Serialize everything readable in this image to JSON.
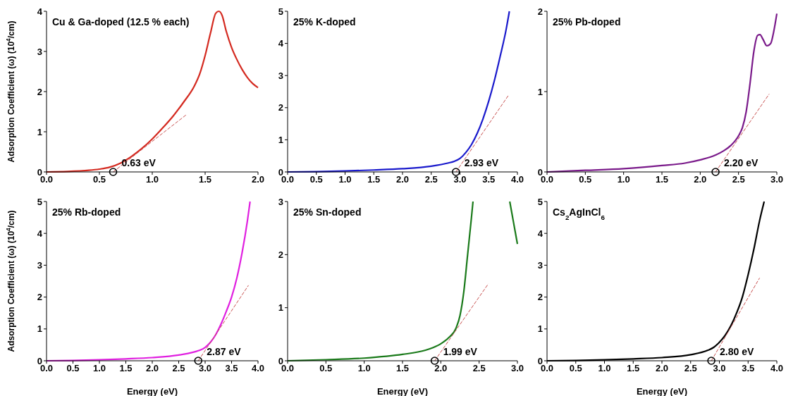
{
  "chart_data": [
    {
      "type": "line",
      "title": "Cu & Ga-doped (12.5 % each)",
      "ylabel": "Adsorption Coefficient (ω) (10$^{4}$/cm)",
      "xlim": [
        0,
        2
      ],
      "ylim": [
        0,
        4
      ],
      "xticks": [
        {
          "value": 0,
          "label": "0.0"
        },
        {
          "value": 0.5,
          "label": "0.5"
        },
        {
          "value": 1,
          "label": "1.0"
        },
        {
          "value": 1.5,
          "label": "1.5"
        },
        {
          "value": 2,
          "label": "2.0"
        }
      ],
      "yticks": [
        0,
        1,
        2,
        3,
        4
      ],
      "annotations": [
        {
          "text": "0.63 eV",
          "x": 0.63,
          "y": 0
        }
      ],
      "series": [
        {
          "color": "#d42a20",
          "x": [
            0,
            0.2,
            0.4,
            0.5,
            0.6,
            0.7,
            0.8,
            0.9,
            1.0,
            1.1,
            1.2,
            1.3,
            1.4,
            1.45,
            1.5,
            1.55,
            1.6,
            1.63,
            1.66,
            1.7,
            1.75,
            1.8,
            1.85,
            1.9,
            1.95,
            2.0
          ],
          "values": [
            0,
            0.01,
            0.04,
            0.07,
            0.12,
            0.22,
            0.38,
            0.58,
            0.82,
            1.1,
            1.4,
            1.75,
            2.15,
            2.45,
            2.9,
            3.45,
            3.95,
            4.0,
            3.9,
            3.5,
            3.1,
            2.8,
            2.55,
            2.35,
            2.2,
            2.1
          ]
        },
        {
          "line_style": "dashed",
          "color": "#c8504f",
          "x": [
            0.63,
            1.32
          ],
          "values": [
            0,
            1.42
          ]
        },
        {
          "type": "scatter",
          "marker": "circle",
          "color": "#000000",
          "x": [
            0.63
          ],
          "values": [
            0
          ]
        }
      ]
    },
    {
      "type": "line",
      "title": "25% K-doped",
      "xlim": [
        0,
        4
      ],
      "ylim": [
        0,
        5
      ],
      "xticks": [
        {
          "value": 0,
          "label": "0.0"
        },
        {
          "value": 0.5,
          "label": "0.5"
        },
        {
          "value": 1,
          "label": "1.0"
        },
        {
          "value": 1.5,
          "label": "1.5"
        },
        {
          "value": 2,
          "label": "2.0"
        },
        {
          "value": 2.5,
          "label": "2.5"
        },
        {
          "value": 3,
          "label": "3.0"
        },
        {
          "value": 3.5,
          "label": "3.5"
        },
        {
          "value": 4,
          "label": "4.0"
        }
      ],
      "yticks": [
        0,
        1,
        2,
        3,
        4,
        5
      ],
      "annotations": [
        {
          "text": "2.93 eV",
          "x": 2.93,
          "y": 0
        }
      ],
      "series": [
        {
          "color": "#1a1acc",
          "x": [
            0,
            0.5,
            1.0,
            1.5,
            2.0,
            2.5,
            2.8,
            2.9,
            3.0,
            3.1,
            3.2,
            3.3,
            3.4,
            3.5,
            3.6,
            3.7,
            3.8,
            3.86
          ],
          "values": [
            0,
            0.01,
            0.03,
            0.06,
            0.1,
            0.18,
            0.28,
            0.33,
            0.42,
            0.6,
            0.85,
            1.2,
            1.65,
            2.2,
            2.85,
            3.6,
            4.4,
            5
          ]
        },
        {
          "line_style": "dashed",
          "color": "#c8504f",
          "x": [
            2.93,
            3.85
          ],
          "values": [
            0,
            2.4
          ]
        },
        {
          "type": "scatter",
          "marker": "circle",
          "color": "#000000",
          "x": [
            2.93
          ],
          "values": [
            0
          ]
        }
      ]
    },
    {
      "type": "line",
      "title": "25% Pb-doped",
      "xlim": [
        0,
        3
      ],
      "ylim": [
        0,
        2
      ],
      "xticks": [
        {
          "value": 0,
          "label": "0.0"
        },
        {
          "value": 0.5,
          "label": "0.5"
        },
        {
          "value": 1,
          "label": "1.0"
        },
        {
          "value": 1.5,
          "label": "1.5"
        },
        {
          "value": 2,
          "label": "2.0"
        },
        {
          "value": 2.5,
          "label": "2.5"
        },
        {
          "value": 3,
          "label": "3.0"
        }
      ],
      "yticks": [
        0,
        1,
        2
      ],
      "annotations": [
        {
          "text": "2.20 eV",
          "x": 2.2,
          "y": 0
        }
      ],
      "series": [
        {
          "color": "#7a1a8a",
          "x": [
            0,
            0.5,
            1.0,
            1.5,
            1.8,
            2.0,
            2.2,
            2.3,
            2.4,
            2.5,
            2.55,
            2.6,
            2.65,
            2.7,
            2.75,
            2.78,
            2.82,
            2.87,
            2.92,
            2.96,
            3.0
          ],
          "values": [
            0,
            0.02,
            0.04,
            0.08,
            0.11,
            0.15,
            0.21,
            0.26,
            0.33,
            0.45,
            0.55,
            0.75,
            1.1,
            1.5,
            1.7,
            1.71,
            1.65,
            1.57,
            1.6,
            1.75,
            1.97
          ]
        },
        {
          "line_style": "dashed",
          "color": "#c8504f",
          "x": [
            2.2,
            2.9
          ],
          "values": [
            0,
            0.97
          ]
        },
        {
          "type": "scatter",
          "marker": "circle",
          "color": "#000000",
          "x": [
            2.2
          ],
          "values": [
            0
          ]
        }
      ]
    },
    {
      "type": "line",
      "title": "25% Rb-doped",
      "xlabel": "Energy (eV)",
      "ylabel": "Adsorption Coefficient (ω) (10$^{4}$/cm)",
      "xlim": [
        0,
        4
      ],
      "ylim": [
        0,
        5
      ],
      "xticks": [
        {
          "value": 0,
          "label": "0.0"
        },
        {
          "value": 0.5,
          "label": "0.5"
        },
        {
          "value": 1,
          "label": "1.0"
        },
        {
          "value": 1.5,
          "label": "1.5"
        },
        {
          "value": 2,
          "label": "2.0"
        },
        {
          "value": 2.5,
          "label": "2.5"
        },
        {
          "value": 3,
          "label": "3.0"
        },
        {
          "value": 3.5,
          "label": "3.5"
        },
        {
          "value": 4,
          "label": "4.0"
        }
      ],
      "yticks": [
        0,
        1,
        2,
        3,
        4,
        5
      ],
      "annotations": [
        {
          "text": "2.87 eV",
          "x": 2.87,
          "y": 0
        }
      ],
      "series": [
        {
          "color": "#e020e0",
          "x": [
            0,
            0.5,
            1.0,
            1.5,
            2.0,
            2.5,
            2.8,
            2.9,
            3.0,
            3.1,
            3.2,
            3.3,
            3.4,
            3.5,
            3.6,
            3.7,
            3.8,
            3.85
          ],
          "values": [
            0,
            0.01,
            0.03,
            0.06,
            0.1,
            0.18,
            0.28,
            0.33,
            0.42,
            0.58,
            0.82,
            1.15,
            1.55,
            2.0,
            2.6,
            3.4,
            4.4,
            5
          ]
        },
        {
          "line_style": "dashed",
          "color": "#c8504f",
          "x": [
            2.87,
            3.82
          ],
          "values": [
            0,
            2.37
          ]
        },
        {
          "type": "scatter",
          "marker": "circle",
          "color": "#000000",
          "x": [
            2.87
          ],
          "values": [
            0
          ]
        }
      ]
    },
    {
      "type": "line",
      "title": "25% Sn-doped",
      "xlabel": "Energy (eV)",
      "xlim": [
        0,
        3
      ],
      "ylim": [
        0,
        3
      ],
      "xticks": [
        {
          "value": 0,
          "label": "0.0"
        },
        {
          "value": 0.5,
          "label": "0.5"
        },
        {
          "value": 1,
          "label": "1.0"
        },
        {
          "value": 1.5,
          "label": "1.5"
        },
        {
          "value": 2,
          "label": "2.0"
        },
        {
          "value": 2.5,
          "label": "2.5"
        },
        {
          "value": 3,
          "label": "3.0"
        }
      ],
      "yticks": [
        0,
        1,
        2,
        3
      ],
      "annotations": [
        {
          "text": "1.99 eV",
          "x": 1.92,
          "y": 0
        }
      ],
      "series": [
        {
          "color": "#1a7a1a",
          "x": [
            0,
            0.5,
            1.0,
            1.5,
            1.8,
            1.9,
            2.0,
            2.1,
            2.2,
            2.25,
            2.3,
            2.35,
            2.4,
            2.42,
            2.66,
            2.9,
            2.95,
            3.0
          ],
          "values": [
            0,
            0.02,
            0.05,
            0.12,
            0.2,
            0.25,
            0.32,
            0.43,
            0.62,
            0.85,
            1.3,
            2.0,
            2.7,
            3,
            null,
            3,
            2.6,
            2.2
          ]
        },
        {
          "line_style": "dashed",
          "color": "#c8504f",
          "x": [
            1.92,
            2.62
          ],
          "values": [
            0,
            1.45
          ]
        },
        {
          "type": "scatter",
          "marker": "circle",
          "color": "#000000",
          "x": [
            1.92
          ],
          "values": [
            0
          ]
        }
      ]
    },
    {
      "type": "line",
      "title": "Cs$_{2}$AgInCl$_{6}$",
      "xlabel": "Energy (eV)",
      "xlim": [
        0,
        4
      ],
      "ylim": [
        0,
        5
      ],
      "xticks": [
        {
          "value": 0,
          "label": "0.0"
        },
        {
          "value": 0.5,
          "label": "0.5"
        },
        {
          "value": 1,
          "label": "1.0"
        },
        {
          "value": 1.5,
          "label": "1.5"
        },
        {
          "value": 2,
          "label": "2.0"
        },
        {
          "value": 2.5,
          "label": "2.5"
        },
        {
          "value": 3,
          "label": "3.0"
        },
        {
          "value": 3.5,
          "label": "3.5"
        },
        {
          "value": 4,
          "label": "4.0"
        }
      ],
      "yticks": [
        0,
        1,
        2,
        3,
        4,
        5
      ],
      "annotations": [
        {
          "text": "2.80 eV",
          "x": 2.86,
          "y": 0
        }
      ],
      "series": [
        {
          "color": "#000000",
          "x": [
            0,
            0.5,
            1.0,
            1.5,
            2.0,
            2.5,
            2.8,
            2.9,
            3.0,
            3.1,
            3.2,
            3.3,
            3.4,
            3.5,
            3.6,
            3.7,
            3.78
          ],
          "values": [
            0,
            0.01,
            0.03,
            0.06,
            0.1,
            0.19,
            0.33,
            0.42,
            0.58,
            0.8,
            1.1,
            1.5,
            2.0,
            2.7,
            3.5,
            4.4,
            5
          ]
        },
        {
          "line_style": "dashed",
          "color": "#c8504f",
          "x": [
            2.86,
            3.7
          ],
          "values": [
            0,
            2.6
          ]
        },
        {
          "type": "scatter",
          "marker": "circle",
          "color": "#000000",
          "x": [
            2.86
          ],
          "values": [
            0
          ]
        }
      ]
    }
  ]
}
